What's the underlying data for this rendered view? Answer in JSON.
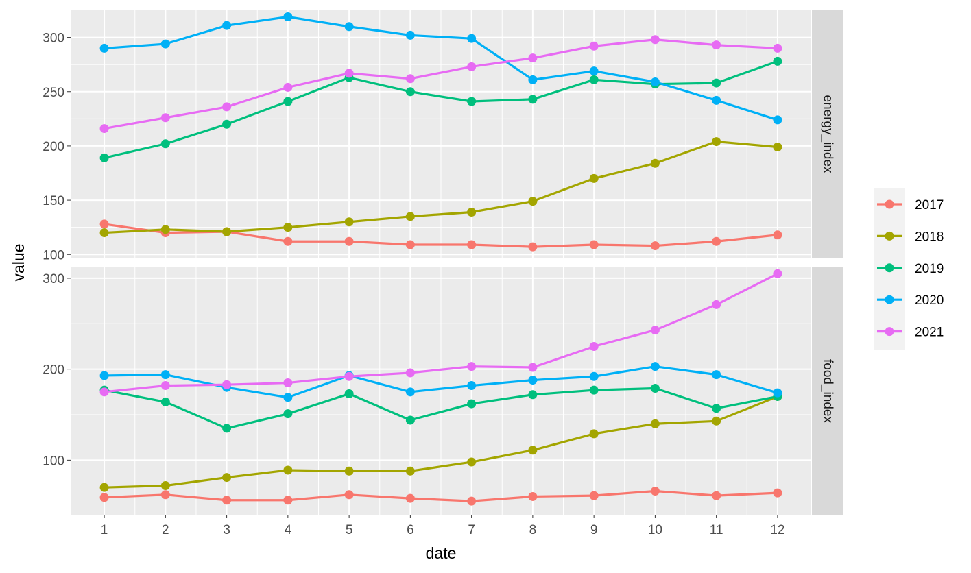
{
  "chart_data": {
    "type": "line",
    "xlabel": "date",
    "ylabel": "value",
    "x": [
      1,
      2,
      3,
      4,
      5,
      6,
      7,
      8,
      9,
      10,
      11,
      12
    ],
    "legend_position": "right",
    "grid": true,
    "panels": [
      {
        "strip": "energy_index",
        "ylim": [
          97,
          325
        ],
        "yticks": [
          100,
          150,
          200,
          250,
          300
        ],
        "series": [
          {
            "name": "2017",
            "color": "#F8766D",
            "values": [
              128,
              120,
              121,
              112,
              112,
              109,
              109,
              107,
              109,
              108,
              112,
              118
            ]
          },
          {
            "name": "2018",
            "color": "#A3A500",
            "values": [
              120,
              123,
              121,
              125,
              130,
              135,
              139,
              149,
              170,
              184,
              204,
              199
            ]
          },
          {
            "name": "2019",
            "color": "#00BF7D",
            "values": [
              189,
              202,
              220,
              241,
              263,
              250,
              241,
              243,
              261,
              257,
              258,
              278
            ]
          },
          {
            "name": "2020",
            "color": "#00B0F6",
            "values": [
              290,
              294,
              311,
              319,
              310,
              302,
              299,
              261,
              269,
              259,
              242,
              224
            ]
          },
          {
            "name": "2021",
            "color": "#E76BF3",
            "values": [
              216,
              226,
              236,
              254,
              267,
              262,
              273,
              281,
              292,
              298,
              293,
              290
            ]
          }
        ]
      },
      {
        "strip": "food_index",
        "ylim": [
          40,
          312
        ],
        "yticks": [
          100,
          200,
          300
        ],
        "series": [
          {
            "name": "2017",
            "color": "#F8766D",
            "values": [
              59,
              62,
              56,
              56,
              62,
              58,
              55,
              60,
              61,
              66,
              61,
              64
            ]
          },
          {
            "name": "2018",
            "color": "#A3A500",
            "values": [
              70,
              72,
              81,
              89,
              88,
              88,
              98,
              111,
              129,
              140,
              143,
              170
            ]
          },
          {
            "name": "2019",
            "color": "#00BF7D",
            "values": [
              177,
              164,
              135,
              151,
              173,
              144,
              162,
              172,
              177,
              179,
              157,
              170
            ]
          },
          {
            "name": "2020",
            "color": "#00B0F6",
            "values": [
              193,
              194,
              180,
              169,
              193,
              175,
              182,
              188,
              192,
              203,
              194,
              174
            ]
          },
          {
            "name": "2021",
            "color": "#E76BF3",
            "values": [
              175,
              182,
              183,
              185,
              192,
              196,
              203,
              202,
              225,
              243,
              271,
              305
            ]
          }
        ]
      }
    ],
    "legend": [
      {
        "label": "2017",
        "color": "#F8766D"
      },
      {
        "label": "2018",
        "color": "#A3A500"
      },
      {
        "label": "2019",
        "color": "#00BF7D"
      },
      {
        "label": "2020",
        "color": "#00B0F6"
      },
      {
        "label": "2021",
        "color": "#E76BF3"
      }
    ]
  }
}
